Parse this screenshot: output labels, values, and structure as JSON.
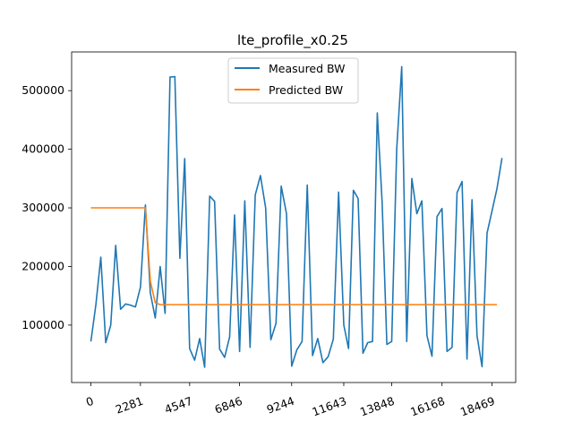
{
  "chart_data": {
    "type": "line",
    "title": "lte_profile_x0.25",
    "xlabel": "",
    "ylabel": "",
    "x_tick_labels": [
      "0",
      "2281",
      "4547",
      "6846",
      "9244",
      "11643",
      "13848",
      "16168",
      "18469"
    ],
    "x_tick_values": [
      0,
      2281,
      4547,
      6846,
      9244,
      11643,
      13848,
      16168,
      18469
    ],
    "y_ticks": [
      100000,
      200000,
      300000,
      400000,
      500000
    ],
    "xlim": [
      -888,
      19559
    ],
    "ylim": [
      2000,
      566000
    ],
    "grid": false,
    "legend_position": "top-center",
    "series": [
      {
        "name": "Measured BW",
        "color": "#1f77b4",
        "x": [
          0,
          228,
          456,
          684,
          912,
          1140,
          1368,
          1596,
          1824,
          2052,
          2281,
          2508,
          2734,
          2961,
          3187,
          3414,
          3641,
          3867,
          4094,
          4320,
          4547,
          4777,
          5007,
          5237,
          5467,
          5697,
          5926,
          6156,
          6386,
          6616,
          6846,
          7086,
          7326,
          7565,
          7805,
          8045,
          8285,
          8525,
          8764,
          9004,
          9244,
          9484,
          9724,
          9964,
          10204,
          10444,
          10683,
          10923,
          11163,
          11403,
          11643,
          11863,
          12084,
          12304,
          12525,
          12745,
          12966,
          13186,
          13407,
          13627,
          13848,
          14080,
          14312,
          14544,
          14776,
          15008,
          15240,
          15472,
          15704,
          15936,
          16168,
          16398,
          16628,
          16858,
          17088,
          17318,
          17548,
          17778,
          18008,
          18238,
          18469,
          18699
        ],
        "y": [
          72000,
          135000,
          216000,
          70000,
          100000,
          236000,
          127000,
          136000,
          134000,
          131000,
          165000,
          305000,
          155000,
          112000,
          200000,
          120000,
          523000,
          524000,
          214000,
          384000,
          60000,
          40000,
          77000,
          28000,
          320000,
          311000,
          59000,
          45000,
          80000,
          288000,
          55000,
          312000,
          62000,
          322000,
          355000,
          300000,
          75000,
          103000,
          337000,
          290000,
          30000,
          58000,
          72000,
          339000,
          48000,
          77000,
          36000,
          46000,
          76000,
          327000,
          100000,
          60000,
          330000,
          316000,
          52000,
          70000,
          72000,
          462000,
          310000,
          67000,
          72000,
          400000,
          541000,
          72000,
          350000,
          290000,
          312000,
          82000,
          47000,
          285000,
          299000,
          55000,
          62000,
          326000,
          345000,
          42000,
          314000,
          82000,
          29000,
          257000,
          295000,
          333000
        ]
      },
      {
        "name": "Predicted BW",
        "color": "#ff7f0e",
        "x": [
          0,
          456,
          912,
          1368,
          1824,
          2281,
          2508,
          2734,
          2961,
          3187,
          3641,
          5007,
          6846,
          9244,
          11643,
          13848,
          16168,
          18469,
          18699
        ],
        "y": [
          300000,
          300000,
          300000,
          300000,
          300000,
          300000,
          300000,
          175000,
          138000,
          135000,
          135000,
          135000,
          135000,
          135000,
          135000,
          135000,
          135000,
          135000,
          135000
        ]
      }
    ],
    "extra_measured_tail": {
      "x": [
        18929
      ],
      "y": [
        385000
      ]
    }
  }
}
